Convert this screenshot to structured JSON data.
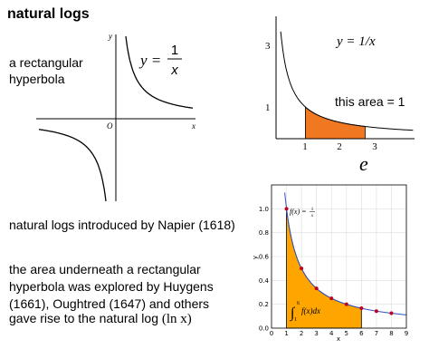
{
  "header": {
    "title": "natural logs"
  },
  "hyperbola_graph": {
    "caption_lines": [
      "a rectangular",
      "hyperbola"
    ],
    "equation_lhs": "y =",
    "numerator": "1",
    "denominator": "x",
    "x_label": "x",
    "y_label": "y",
    "origin_label": "O"
  },
  "area_graph": {
    "equation": "y = 1/x",
    "y_tick_labels": [
      "1",
      "3"
    ],
    "x_tick_labels": [
      "1",
      "2",
      "3"
    ],
    "area_label": "this area = 1",
    "e_label": "e"
  },
  "integral_plot": {
    "y_tick_labels": [
      "0.0",
      "0.2",
      "0.4",
      "0.6",
      "0.8",
      "1.0"
    ],
    "x_tick_labels": [
      "0",
      "1",
      "2",
      "3",
      "4",
      "5",
      "6",
      "7",
      "8",
      "9"
    ],
    "x_label": "x",
    "y_label": "y",
    "f_lhs": "f(x) =",
    "f_num": "1",
    "f_den": "x",
    "integral_sign": "∫",
    "integral_upper": "6",
    "integral_lower": "1",
    "integrand": "f(x)dx"
  },
  "body": {
    "line1": "natural logs introduced by Napier (1618)",
    "paragraph_lines": [
      "the area underneath a rectangular",
      "hyperbola was explored by Huygens",
      "(1661), Oughtred (1647) and others"
    ],
    "line3": "gave rise to the natural log ",
    "line3_math": "(ln x)"
  }
}
